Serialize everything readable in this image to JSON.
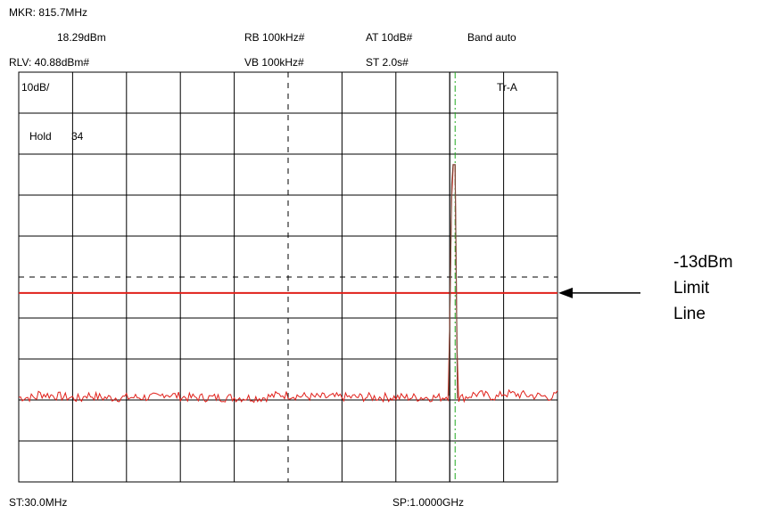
{
  "header": {
    "marker_freq": "MKR: 815.7MHz",
    "marker_level": "18.29dBm",
    "ref_level": "RLV: 40.88dBm#",
    "rbw": "RB 100kHz#",
    "vbw": "VB 100kHz#",
    "attenuation": "AT 10dB#",
    "sweep_time": "ST 2.0s#",
    "band": "Band auto"
  },
  "screen": {
    "scale": "10dB/",
    "hold": "Hold",
    "hold_count": "34",
    "trace": "Tr-A"
  },
  "footer": {
    "start": "ST:30.0MHz",
    "stop": "SP:1.0000GHz"
  },
  "annotation": {
    "line1": "-13dBm",
    "line2": "Limit",
    "line3": "Line"
  },
  "chart_data": {
    "type": "line",
    "x_unit": "MHz",
    "y_unit": "dBm",
    "xlim": [
      30.0,
      1000.0
    ],
    "ylim": [
      -59.12,
      40.88
    ],
    "y_per_div": 10,
    "divisions": {
      "x": 10,
      "y": 10
    },
    "grid": true,
    "limit_line": {
      "level": -13,
      "color": "#e0201a"
    },
    "marker": {
      "x": 815.7,
      "y": 18.29,
      "color": "#22aa22"
    },
    "series": [
      {
        "color": "#e0201a",
        "noise_floor": -38.5,
        "points": [
          [
            30.0,
            -38.5
          ],
          [
            63.1,
            -38.5
          ],
          [
            64.3,
            -37.6
          ],
          [
            145.2,
            -38.9
          ],
          [
            148.1,
            -37.8
          ],
          [
            183.2,
            -38.6
          ],
          [
            286.1,
            -38.4
          ],
          [
            289.7,
            -37.5
          ],
          [
            330.5,
            -38.5
          ],
          [
            468.0,
            -38.6
          ],
          [
            502.5,
            -37.8
          ],
          [
            560.1,
            -38.4
          ],
          [
            790.6,
            -38.5
          ],
          [
            804.1,
            -38.1
          ],
          [
            809.7,
            13.6
          ],
          [
            811.9,
            18.29
          ],
          [
            815.7,
            18.29
          ],
          [
            819.9,
            -38.8
          ],
          [
            835.1,
            -38.4
          ],
          [
            851.8,
            -37.6
          ],
          [
            893.6,
            -38.5
          ],
          [
            900.9,
            -37.5
          ],
          [
            990.8,
            -38.4
          ],
          [
            1000.0,
            -37.8
          ]
        ]
      }
    ]
  }
}
